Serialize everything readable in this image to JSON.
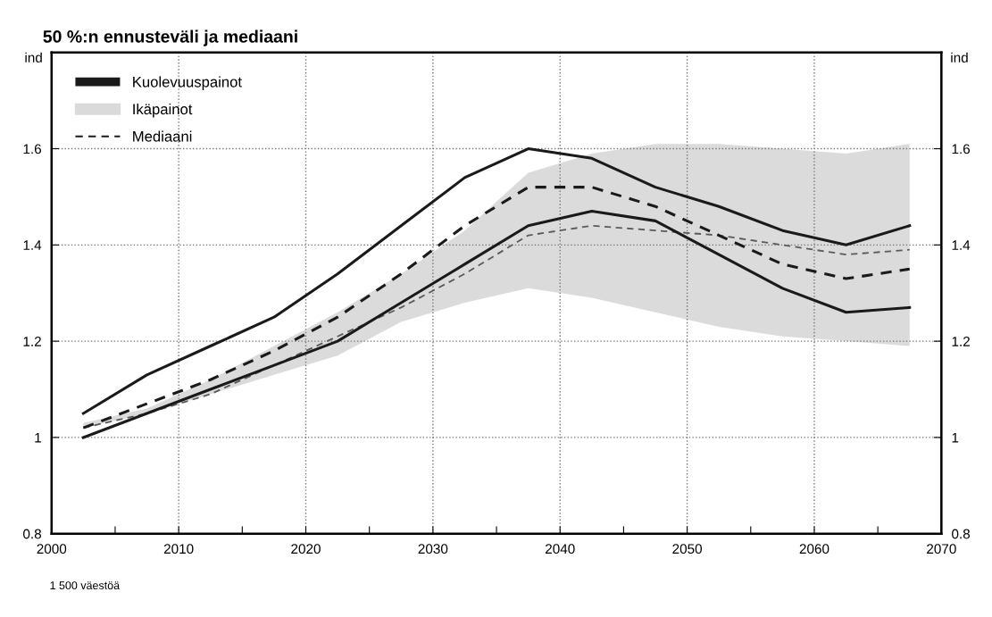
{
  "chart_data": {
    "type": "line",
    "title": "50 %:n ennusteväli ja mediaani",
    "ylabel": "ind",
    "y2label": "ind",
    "x": [
      2002.5,
      2007.5,
      2012.5,
      2017.5,
      2022.5,
      2027.5,
      2032.5,
      2037.5,
      2042.5,
      2047.5,
      2052.5,
      2057.5,
      2062.5,
      2067.5
    ],
    "series": [
      {
        "name": "Kuolevuuspainot",
        "color": "#1a1a1a",
        "line_style": "solid",
        "values": [
          1.05,
          1.13,
          1.19,
          1.25,
          1.34,
          1.44,
          1.54,
          1.6,
          1.58,
          1.52,
          1.48,
          1.43,
          1.4,
          1.44
        ]
      },
      {
        "color": "#1a1a1a",
        "line_style": "solid",
        "values": [
          1.0,
          1.05,
          1.1,
          1.15,
          1.2,
          1.28,
          1.36,
          1.44,
          1.47,
          1.45,
          1.38,
          1.31,
          1.26,
          1.27
        ]
      },
      {
        "name": "Ikäpainot",
        "color": "#5a5a5a",
        "line_style": "dashed",
        "values": [
          1.02,
          1.05,
          1.09,
          1.15,
          1.21,
          1.27,
          1.34,
          1.42,
          1.44,
          1.43,
          1.42,
          1.4,
          1.38,
          1.39
        ],
        "lower": [
          1.02,
          1.05,
          1.09,
          1.13,
          1.17,
          1.24,
          1.28,
          1.31,
          1.29,
          1.26,
          1.23,
          1.21,
          1.2,
          1.19
        ],
        "upper": [
          1.03,
          1.06,
          1.12,
          1.19,
          1.26,
          1.34,
          1.43,
          1.55,
          1.59,
          1.61,
          1.61,
          1.6,
          1.59,
          1.61
        ]
      },
      {
        "name": "Mediaani",
        "color": "#1a1a1a",
        "line_style": "dashed",
        "values": [
          1.02,
          1.07,
          1.12,
          1.18,
          1.25,
          1.34,
          1.44,
          1.52,
          1.52,
          1.48,
          1.42,
          1.36,
          1.33,
          1.35
        ]
      }
    ],
    "xlim": [
      2000,
      2070
    ],
    "xticks": [
      2000,
      {
        "value": 2005,
        "label": null
      },
      2010,
      {
        "value": 2015,
        "label": null
      },
      2020,
      {
        "value": 2025,
        "label": null
      },
      2030,
      {
        "value": 2035,
        "label": null
      },
      2040,
      {
        "value": 2045,
        "label": null
      },
      2050,
      {
        "value": 2055,
        "label": null
      },
      2060,
      {
        "value": 2065,
        "label": null
      },
      2070
    ],
    "ylim": [
      0.8,
      1.8
    ],
    "yticks": [
      0.8,
      1,
      1.2,
      1.4,
      1.6
    ],
    "y2lim": [
      0.8,
      1.8
    ],
    "y2ticks": [
      0.8,
      1,
      1.2,
      1.4,
      1.6
    ],
    "grid": true,
    "legend": "top left",
    "marker": "none",
    "annotations": [
      "1 500 väestöä"
    ]
  }
}
